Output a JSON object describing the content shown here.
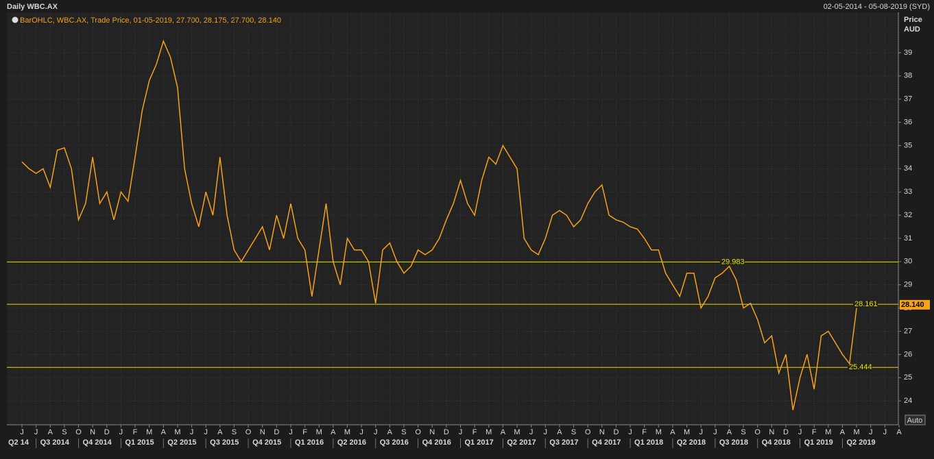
{
  "chart_data": {
    "type": "line",
    "title": "Daily WBC.AX",
    "date_range": "02-05-2014 - 05-08-2019 (SYD)",
    "ylabel": "Price",
    "yunit": "AUD",
    "auto_button": "Auto",
    "categories": [
      "J",
      null,
      "J",
      null,
      "A",
      null,
      "S",
      null,
      "O",
      null,
      "N",
      null,
      "D",
      null,
      "J",
      null,
      "F",
      null,
      "M",
      null,
      "A",
      null,
      "M",
      null,
      "J",
      null,
      "J",
      null,
      "A",
      null,
      "S",
      null,
      "O",
      null,
      "N",
      null,
      "D",
      null,
      "J",
      null,
      "F",
      null,
      "M",
      null,
      "A",
      null,
      "M",
      null,
      "J",
      null,
      "J",
      null,
      "A",
      null,
      "S",
      null,
      "O",
      null,
      "N",
      null,
      "D",
      null,
      "J",
      null,
      "F",
      null,
      "M",
      null,
      "A",
      null,
      "M",
      null,
      "J",
      null,
      "J",
      null,
      "A",
      null,
      "S",
      null,
      "O",
      null,
      "N",
      null,
      "D",
      null,
      "J",
      null,
      "F",
      null,
      "M",
      null,
      "A",
      null,
      "M",
      null,
      "J",
      null,
      "J",
      null,
      "A",
      null,
      "S",
      null,
      "O",
      null,
      "N",
      null,
      "D",
      null,
      "J",
      null,
      "F",
      null,
      "M",
      null,
      "A",
      null,
      "M",
      null,
      "J",
      null,
      "J",
      null,
      "A"
    ],
    "quarters": [
      "Q2 14",
      "Q3 2014",
      "Q4 2014",
      "Q1 2015",
      "Q2 2015",
      "Q3 2015",
      "Q4 2015",
      "Q1 2016",
      "Q2 2016",
      "Q3 2016",
      "Q4 2016",
      "Q1 2017",
      "Q2 2017",
      "Q3 2017",
      "Q4 2017",
      "Q1 2018",
      "Q2 2018",
      "Q3 2018",
      "Q4 2018",
      "Q1 2019",
      "Q2 2019"
    ],
    "series": [
      {
        "name": "BarOHLC, WBC.AX, Trade Price, 01-05-2019, 27.700, 28.175, 27.700, 28.140",
        "color": "#f7a21b",
        "values": [
          34.3,
          34.0,
          33.8,
          34.0,
          33.2,
          34.8,
          34.9,
          34.0,
          31.8,
          32.5,
          34.5,
          32.5,
          33.0,
          31.8,
          33.0,
          32.6,
          34.5,
          36.5,
          37.8,
          38.5,
          39.5,
          38.8,
          37.5,
          34.0,
          32.5,
          31.5,
          33.0,
          32.0,
          34.5,
          32.0,
          30.5,
          30.0,
          30.5,
          31.0,
          31.5,
          30.5,
          32.0,
          31.0,
          32.5,
          31.0,
          30.5,
          28.5,
          30.5,
          32.5,
          30.0,
          29.0,
          31.0,
          30.5,
          30.5,
          30.0,
          28.2,
          30.5,
          30.8,
          30.0,
          29.5,
          29.8,
          30.5,
          30.3,
          30.5,
          31.0,
          31.8,
          32.5,
          33.5,
          32.5,
          32.0,
          33.5,
          34.5,
          34.2,
          35.0,
          34.5,
          34.0,
          31.0,
          30.5,
          30.3,
          31.0,
          32.0,
          32.2,
          32.0,
          31.5,
          31.8,
          32.5,
          33.0,
          33.3,
          32.0,
          31.8,
          31.7,
          31.5,
          31.4,
          31.0,
          30.5,
          30.5,
          29.5,
          29.0,
          28.5,
          29.5,
          29.5,
          28.0,
          28.5,
          29.3,
          29.5,
          29.8,
          29.2,
          28.0,
          28.2,
          27.5,
          26.5,
          26.8,
          25.2,
          26.0,
          23.6,
          25.0,
          26.0,
          24.5,
          26.8,
          27.0,
          26.5,
          26.0,
          25.6,
          28.0,
          null,
          null,
          null,
          null,
          null,
          null
        ]
      }
    ],
    "levels": [
      29.983,
      28.161,
      25.444
    ],
    "level_color": "#e8e000",
    "last_price": 28.14,
    "last_price_label": "28.140",
    "ylim": [
      22.97,
      40.74
    ],
    "yticks": [
      24,
      25,
      26,
      27,
      28,
      29,
      30,
      31,
      32,
      33,
      34,
      35,
      36,
      37,
      38,
      39
    ],
    "grid": true
  }
}
